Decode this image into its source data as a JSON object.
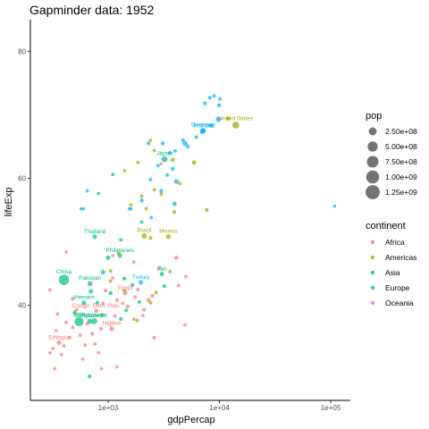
{
  "chart_data": {
    "type": "scatter",
    "title": "Gapminder data: 1952",
    "xlabel": "gdpPercap",
    "ylabel": "lifeExp",
    "x_scale": "log10",
    "xlim": [
      200,
      150000
    ],
    "ylim": [
      25,
      85
    ],
    "x_ticks": [
      1000,
      10000,
      100000
    ],
    "x_tick_labels": [
      "1e+03",
      "1e+04",
      "1e+05"
    ],
    "y_ticks": [
      40,
      60,
      80
    ],
    "y_tick_labels": [
      "40",
      "60",
      "80"
    ],
    "grid": false,
    "legend_position": "right",
    "size_legend": {
      "title": "pop",
      "entries": [
        {
          "label": "2.50e+08",
          "value": 250000000
        },
        {
          "label": "5.00e+08",
          "value": 500000000
        },
        {
          "label": "7.50e+08",
          "value": 750000000
        },
        {
          "label": "1.00e+09",
          "value": 1000000000
        },
        {
          "label": "1.25e+09",
          "value": 1250000000
        }
      ]
    },
    "color_legend": {
      "title": "continent",
      "entries": [
        {
          "label": "Africa",
          "color": "#F8766D"
        },
        {
          "label": "Americas",
          "color": "#A3A500"
        },
        {
          "label": "Asia",
          "color": "#00BF7D"
        },
        {
          "label": "Europe",
          "color": "#00B0F6"
        },
        {
          "label": "Oceania",
          "color": "#E76BF3"
        }
      ]
    },
    "labeled_points": [
      {
        "label": "China",
        "continent": "Asia",
        "x": 400,
        "y": 44,
        "pop": 556000000
      },
      {
        "label": "India",
        "continent": "Asia",
        "x": 547,
        "y": 37.4,
        "pop": 372000000
      },
      {
        "label": "United States",
        "continent": "Americas",
        "x": 13990,
        "y": 68.4,
        "pop": 157550000
      },
      {
        "label": "Japan",
        "continent": "Asia",
        "x": 3217,
        "y": 63,
        "pop": 86460000
      },
      {
        "label": "Germany",
        "continent": "Europe",
        "x": 7144,
        "y": 67.5,
        "pop": 69150000
      },
      {
        "label": "France",
        "continent": "Europe",
        "x": 7030,
        "y": 67.4,
        "pop": 42460000
      },
      {
        "label": "Brazil",
        "continent": "Americas",
        "x": 2109,
        "y": 50.9,
        "pop": 56600000
      },
      {
        "label": "Mexico",
        "continent": "Americas",
        "x": 3478,
        "y": 50.8,
        "pop": 30140000
      },
      {
        "label": "Thailand",
        "continent": "Asia",
        "x": 757,
        "y": 50.8,
        "pop": 21290000
      },
      {
        "label": "Philippines",
        "continent": "Asia",
        "x": 1273,
        "y": 47.8,
        "pop": 22440000
      },
      {
        "label": "Iran",
        "continent": "Asia",
        "x": 3035,
        "y": 44.9,
        "pop": 17270000
      },
      {
        "label": "Pakistan",
        "continent": "Asia",
        "x": 685,
        "y": 43.4,
        "pop": 41350000
      },
      {
        "label": "Vietnam",
        "continent": "Asia",
        "x": 605,
        "y": 40.4,
        "pop": 26250000
      },
      {
        "label": "Turkey",
        "continent": "Europe",
        "x": 1970,
        "y": 43.6,
        "pop": 22240000
      },
      {
        "label": "Egypt",
        "continent": "Africa",
        "x": 1419,
        "y": 41.9,
        "pop": 22220000
      },
      {
        "label": "Bangladesh",
        "continent": "Asia",
        "x": 684,
        "y": 37.5,
        "pop": 46890000
      },
      {
        "label": "Congo, Dem. Rep.",
        "continent": "Africa",
        "x": 781,
        "y": 39.1,
        "pop": 14100000
      },
      {
        "label": "Indonesia",
        "continent": "Asia",
        "x": 750,
        "y": 37.5,
        "pop": 82050000
      },
      {
        "label": "Nigeria",
        "continent": "Africa",
        "x": 1077,
        "y": 36.3,
        "pop": 33120000
      },
      {
        "label": "Ethiopia",
        "continent": "Africa",
        "x": 362,
        "y": 34.1,
        "pop": 20860000
      }
    ],
    "points": [
      {
        "continent": "Europe",
        "x": 108382,
        "y": 55.6,
        "pop": 160000
      },
      {
        "continent": "Europe",
        "x": 10095,
        "y": 72.5,
        "pop": 3500000
      },
      {
        "continent": "Europe",
        "x": 8950,
        "y": 73,
        "pop": 4500000
      },
      {
        "continent": "Europe",
        "x": 8200,
        "y": 72.7,
        "pop": 3300000
      },
      {
        "continent": "Europe",
        "x": 9900,
        "y": 71.5,
        "pop": 7100000
      },
      {
        "continent": "Europe",
        "x": 7400,
        "y": 71.8,
        "pop": 10400000
      },
      {
        "continent": "Europe",
        "x": 9800,
        "y": 69.3,
        "pop": 50400000
      },
      {
        "continent": "Europe",
        "x": 8500,
        "y": 68.3,
        "pop": 8700000
      },
      {
        "continent": "Europe",
        "x": 6200,
        "y": 66.5,
        "pop": 6900000
      },
      {
        "continent": "Europe",
        "x": 5200,
        "y": 65,
        "pop": 8000000
      },
      {
        "continent": "Europe",
        "x": 4700,
        "y": 66,
        "pop": 4100000
      },
      {
        "continent": "Europe",
        "x": 4900,
        "y": 65.5,
        "pop": 47700000
      },
      {
        "continent": "Europe",
        "x": 3600,
        "y": 64,
        "pop": 9100000
      },
      {
        "continent": "Europe",
        "x": 4000,
        "y": 64.3,
        "pop": 3900000
      },
      {
        "continent": "Europe",
        "x": 3100,
        "y": 65.5,
        "pop": 9500000
      },
      {
        "continent": "Europe",
        "x": 3800,
        "y": 61.5,
        "pop": 7600000
      },
      {
        "continent": "Europe",
        "x": 4100,
        "y": 59.5,
        "pop": 28000000
      },
      {
        "continent": "Europe",
        "x": 2400,
        "y": 59.8,
        "pop": 3000000
      },
      {
        "continent": "Europe",
        "x": 3000,
        "y": 58,
        "pop": 7300000
      },
      {
        "continent": "Europe",
        "x": 3950,
        "y": 56,
        "pop": 16600000
      },
      {
        "continent": "Europe",
        "x": 2440,
        "y": 53.8,
        "pop": 1600000
      },
      {
        "continent": "Europe",
        "x": 2000,
        "y": 56.5,
        "pop": 7300000
      },
      {
        "continent": "Europe",
        "x": 1600,
        "y": 55.2,
        "pop": 1300000
      },
      {
        "continent": "Europe",
        "x": 1550,
        "y": 55.2,
        "pop": 300000
      },
      {
        "continent": "Europe",
        "x": 600,
        "y": 55.2,
        "pop": 400000
      },
      {
        "continent": "Europe",
        "x": 650,
        "y": 58,
        "pop": 400000
      },
      {
        "continent": "Europe",
        "x": 570,
        "y": 55.2,
        "pop": 200000
      },
      {
        "continent": "Europe",
        "x": 3400,
        "y": 60.5,
        "pop": 3500000
      },
      {
        "continent": "Europe",
        "x": 2800,
        "y": 62,
        "pop": 4000000
      },
      {
        "continent": "Americas",
        "x": 12000,
        "y": 69.4,
        "pop": 14800000
      },
      {
        "continent": "Americas",
        "x": 5910,
        "y": 62.5,
        "pop": 17900000
      },
      {
        "continent": "Americas",
        "x": 4400,
        "y": 59.2,
        "pop": 2300000
      },
      {
        "continent": "Americas",
        "x": 7700,
        "y": 55,
        "pop": 5400000
      },
      {
        "continent": "Americas",
        "x": 3930,
        "y": 54.7,
        "pop": 6300000
      },
      {
        "continent": "Americas",
        "x": 3800,
        "y": 62.9,
        "pop": 14800000
      },
      {
        "continent": "Americas",
        "x": 2600,
        "y": 64.4,
        "pop": 1200000
      },
      {
        "continent": "Americas",
        "x": 2400,
        "y": 66,
        "pop": 800000
      },
      {
        "continent": "Americas",
        "x": 1850,
        "y": 62.5,
        "pop": 2200000
      },
      {
        "continent": "Americas",
        "x": 3000,
        "y": 57.5,
        "pop": 2100000
      },
      {
        "continent": "Americas",
        "x": 2200,
        "y": 55.2,
        "pop": 2600000
      },
      {
        "continent": "Americas",
        "x": 1400,
        "y": 61.2,
        "pop": 1000000
      },
      {
        "continent": "Americas",
        "x": 2000,
        "y": 57.2,
        "pop": 2300000
      },
      {
        "continent": "Americas",
        "x": 2600,
        "y": 58.2,
        "pop": 1300000
      },
      {
        "continent": "Americas",
        "x": 1600,
        "y": 55.8,
        "pop": 1500000
      },
      {
        "continent": "Americas",
        "x": 2400,
        "y": 50.6,
        "pop": 8000000
      },
      {
        "continent": "Americas",
        "x": 1250,
        "y": 48.1,
        "pop": 3100000
      },
      {
        "continent": "Americas",
        "x": 2400,
        "y": 40.4,
        "pop": 2700000
      },
      {
        "continent": "Americas",
        "x": 2700,
        "y": 42,
        "pop": 3000000
      },
      {
        "continent": "Americas",
        "x": 1400,
        "y": 42.3,
        "pop": 1500000
      },
      {
        "continent": "Americas",
        "x": 1050,
        "y": 45.4,
        "pop": 1500000
      },
      {
        "continent": "Americas",
        "x": 1820,
        "y": 37.6,
        "pop": 3200000
      },
      {
        "continent": "Americas",
        "x": 1050,
        "y": 43.8,
        "pop": 1300000
      },
      {
        "continent": "Americas",
        "x": 3600,
        "y": 45.3,
        "pop": 2500000
      },
      {
        "continent": "Asia",
        "x": 2300,
        "y": 65.5,
        "pop": 4000000
      },
      {
        "continent": "Asia",
        "x": 1100,
        "y": 60.6,
        "pop": 1000000
      },
      {
        "continent": "Asia",
        "x": 820,
        "y": 57.6,
        "pop": 500000
      },
      {
        "continent": "Asia",
        "x": 2000,
        "y": 53.1,
        "pop": 1700000
      },
      {
        "continent": "Asia",
        "x": 3200,
        "y": 43,
        "pop": 3000000
      },
      {
        "continent": "Asia",
        "x": 1300,
        "y": 50.3,
        "pop": 3500000
      },
      {
        "continent": "Asia",
        "x": 1000,
        "y": 47.5,
        "pop": 21000000
      },
      {
        "continent": "Asia",
        "x": 1650,
        "y": 43.2,
        "pop": 9000000
      },
      {
        "continent": "Asia",
        "x": 1400,
        "y": 44.2,
        "pop": 6600000
      },
      {
        "continent": "Asia",
        "x": 1450,
        "y": 39.2,
        "pop": 5000000
      },
      {
        "continent": "Asia",
        "x": 1300,
        "y": 37.8,
        "pop": 4000000
      },
      {
        "continent": "Asia",
        "x": 1900,
        "y": 40.5,
        "pop": 2000000
      },
      {
        "continent": "Asia",
        "x": 900,
        "y": 45.2,
        "pop": 20000000
      },
      {
        "continent": "Asia",
        "x": 700,
        "y": 42.2,
        "pop": 19000000
      },
      {
        "continent": "Asia",
        "x": 800,
        "y": 40.4,
        "pop": 8500000
      },
      {
        "continent": "Asia",
        "x": 500,
        "y": 38.9,
        "pop": 9000000
      },
      {
        "continent": "Asia",
        "x": 680,
        "y": 28.8,
        "pop": 8400000
      },
      {
        "continent": "Asia",
        "x": 1050,
        "y": 41.9,
        "pop": 9000000
      },
      {
        "continent": "Africa",
        "x": 3000,
        "y": 62.3,
        "pop": 600000
      },
      {
        "continent": "Africa",
        "x": 4100,
        "y": 47.5,
        "pop": 14000000
      },
      {
        "continent": "Africa",
        "x": 5000,
        "y": 44.5,
        "pop": 1800000
      },
      {
        "continent": "Africa",
        "x": 4300,
        "y": 43.1,
        "pop": 1400000
      },
      {
        "continent": "Africa",
        "x": 2900,
        "y": 45.9,
        "pop": 3000000
      },
      {
        "continent": "Africa",
        "x": 2500,
        "y": 41.5,
        "pop": 4300000
      },
      {
        "continent": "Africa",
        "x": 2300,
        "y": 40.8,
        "pop": 9300000
      },
      {
        "continent": "Africa",
        "x": 2100,
        "y": 39.3,
        "pop": 2800000
      },
      {
        "continent": "Africa",
        "x": 2050,
        "y": 38.4,
        "pop": 2000000
      },
      {
        "continent": "Africa",
        "x": 1750,
        "y": 41.3,
        "pop": 3000000
      },
      {
        "continent": "Africa",
        "x": 1850,
        "y": 42.5,
        "pop": 1500000
      },
      {
        "continent": "Africa",
        "x": 1700,
        "y": 37.8,
        "pop": 2100000
      },
      {
        "continent": "Africa",
        "x": 1500,
        "y": 39.8,
        "pop": 5000000
      },
      {
        "continent": "Africa",
        "x": 1350,
        "y": 40.3,
        "pop": 1300000
      },
      {
        "continent": "Africa",
        "x": 1200,
        "y": 40.8,
        "pop": 4600000
      },
      {
        "continent": "Africa",
        "x": 1150,
        "y": 38.3,
        "pop": 2500000
      },
      {
        "continent": "Africa",
        "x": 1100,
        "y": 44.3,
        "pop": 3500000
      },
      {
        "continent": "Africa",
        "x": 950,
        "y": 42.3,
        "pop": 4000000
      },
      {
        "continent": "Africa",
        "x": 900,
        "y": 40.3,
        "pop": 2000000
      },
      {
        "continent": "Africa",
        "x": 880,
        "y": 38.5,
        "pop": 1600000
      },
      {
        "continent": "Africa",
        "x": 860,
        "y": 36.3,
        "pop": 8000000
      },
      {
        "continent": "Africa",
        "x": 820,
        "y": 32.5,
        "pop": 1500000
      },
      {
        "continent": "Africa",
        "x": 760,
        "y": 33.9,
        "pop": 1200000
      },
      {
        "continent": "Africa",
        "x": 720,
        "y": 35.5,
        "pop": 5000000
      },
      {
        "continent": "Africa",
        "x": 650,
        "y": 37.1,
        "pop": 1800000
      },
      {
        "continent": "Africa",
        "x": 620,
        "y": 33.7,
        "pop": 1600000
      },
      {
        "continent": "Africa",
        "x": 590,
        "y": 31.5,
        "pop": 1200000
      },
      {
        "continent": "Africa",
        "x": 560,
        "y": 35.3,
        "pop": 2100000
      },
      {
        "continent": "Africa",
        "x": 520,
        "y": 39.3,
        "pop": 1300000
      },
      {
        "continent": "Africa",
        "x": 480,
        "y": 36.5,
        "pop": 3000000
      },
      {
        "continent": "Africa",
        "x": 450,
        "y": 34.9,
        "pop": 2800000
      },
      {
        "continent": "Africa",
        "x": 420,
        "y": 37.3,
        "pop": 2000000
      },
      {
        "continent": "Africa",
        "x": 400,
        "y": 33.6,
        "pop": 1600000
      },
      {
        "continent": "Africa",
        "x": 380,
        "y": 32.2,
        "pop": 800000
      },
      {
        "continent": "Africa",
        "x": 350,
        "y": 38.6,
        "pop": 1200000
      },
      {
        "continent": "Africa",
        "x": 340,
        "y": 36.0,
        "pop": 900000
      },
      {
        "continent": "Africa",
        "x": 320,
        "y": 33.2,
        "pop": 1500000
      },
      {
        "continent": "Africa",
        "x": 300,
        "y": 42.4,
        "pop": 1000000
      },
      {
        "continent": "Africa",
        "x": 300,
        "y": 32.5,
        "pop": 500000
      },
      {
        "continent": "Africa",
        "x": 330,
        "y": 30.0,
        "pop": 1000000
      },
      {
        "continent": "Africa",
        "x": 420,
        "y": 48.4,
        "pop": 600000
      },
      {
        "continent": "Africa",
        "x": 1100,
        "y": 47.8,
        "pop": 700000
      },
      {
        "continent": "Africa",
        "x": 2600,
        "y": 34.9,
        "pop": 4000000
      },
      {
        "continent": "Africa",
        "x": 1200,
        "y": 30.3,
        "pop": 1200000
      },
      {
        "continent": "Africa",
        "x": 4900,
        "y": 36.9,
        "pop": 1000000
      },
      {
        "continent": "Africa",
        "x": 1700,
        "y": 46.8,
        "pop": 2000000
      },
      {
        "continent": "Africa",
        "x": 480,
        "y": 41.0,
        "pop": 3000000
      },
      {
        "continent": "Africa",
        "x": 870,
        "y": 30.0,
        "pop": 900000
      }
    ]
  }
}
